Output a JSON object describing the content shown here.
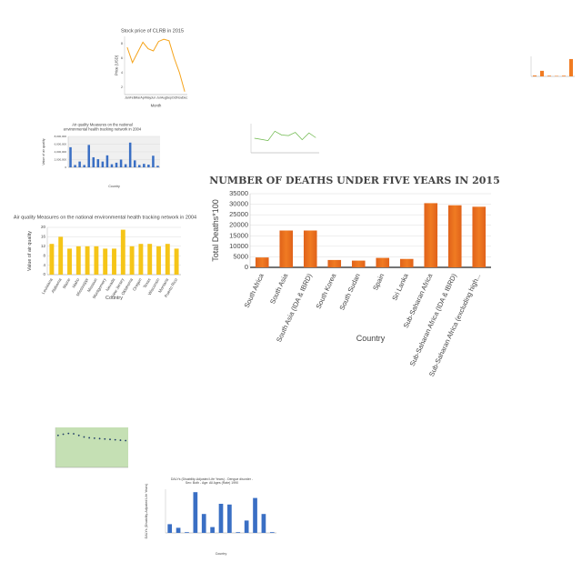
{
  "chart_data": [
    {
      "type": "line",
      "title": "Stock price of CLRB in 2015",
      "xlabel": "Month",
      "ylabel": "Price (USD)",
      "categories": [
        "Jan",
        "Feb",
        "Mar",
        "Apr",
        "May",
        "Jun",
        "Jul",
        "Aug",
        "Sep",
        "Oct",
        "Nov",
        "Dec"
      ],
      "values": [
        7.5,
        5.4,
        6.8,
        8.2,
        7.3,
        7.0,
        8.3,
        8.6,
        8.4,
        6.0,
        4.0,
        1.4
      ],
      "color": "#f5a31a",
      "ylim": [
        1,
        9
      ],
      "yticks": [
        2,
        4,
        6,
        8
      ],
      "grid": false
    },
    {
      "type": "bar",
      "categories": [
        null,
        null,
        null,
        null,
        null,
        null
      ],
      "values": [
        0.4,
        2.5,
        0.3,
        0.2,
        0.3,
        7.8
      ],
      "color": "#f07b22",
      "ylim": [
        0,
        9
      ],
      "grid": false
    },
    {
      "type": "bar",
      "title": "Air quality Measures on the national environmental health tracking network in 2004",
      "xlabel": "Country",
      "ylabel": "Value of air quality",
      "categories": [
        null,
        null,
        null,
        null,
        null,
        null,
        null,
        null,
        null,
        null,
        null,
        null,
        null,
        null,
        null,
        null,
        null,
        null,
        null,
        null
      ],
      "values": [
        5200000,
        600000,
        1500000,
        600000,
        5800000,
        2600000,
        2100000,
        1500000,
        3100000,
        800000,
        1200000,
        2000000,
        800000,
        6400000,
        1800000,
        600000,
        900000,
        700000,
        3000000,
        400000
      ],
      "color": "#3a6fc4",
      "ylim": [
        0,
        8000000
      ],
      "yticks": [
        {
          "value": 0,
          "label": "0"
        },
        {
          "value": 2000000,
          "label": "2,000,000"
        },
        {
          "value": 4000000,
          "label": "4,000,000"
        },
        {
          "value": 6000000,
          "label": "6,000,000"
        },
        {
          "value": 8000000,
          "label": "8,000,000"
        }
      ],
      "grid": true,
      "background": "#f0f0f0"
    },
    {
      "type": "line",
      "categories": [
        null,
        null,
        null,
        null,
        null,
        null,
        null,
        null,
        null,
        null
      ],
      "values": [
        5.0,
        4.6,
        4.2,
        7.4,
        6.1,
        5.9,
        7.0,
        4.5,
        6.8,
        5.2
      ],
      "color": "#6cb84a",
      "ylim": [
        0,
        10
      ],
      "grid": false
    },
    {
      "type": "bar",
      "title": "Air quality Measures on the national environmental health tracking network in 2004",
      "xlabel": "Country",
      "ylabel": "Value of air quality",
      "categories": [
        "Louisiana",
        "Alabama",
        "Maine",
        "Idaho",
        "Mississippi",
        "Missouri",
        "Montgomery",
        "Nevada",
        "New Jersey",
        "Oklahoma",
        "Oregon",
        "Texas",
        "Wisconsin",
        "Montana",
        "Puerto Rico"
      ],
      "values": [
        13,
        16,
        11,
        12,
        12,
        12,
        11,
        11,
        19,
        12,
        13,
        13,
        12,
        13,
        11
      ],
      "color": "#f5c518",
      "ylim": [
        0,
        20
      ],
      "yticks": [
        0,
        4,
        8,
        12,
        16,
        20
      ],
      "grid": true
    },
    {
      "type": "bar",
      "title": "NUMBER OF DEATHS UNDER FIVE YEARS IN 2015",
      "xlabel": "Country",
      "ylabel": "Total Deaths*100",
      "categories": [
        "South Africa",
        "South Asia",
        "South Asia (IDA & IBRD)",
        "South Korea",
        "South Sudan",
        "Spain",
        "Sri Lanka",
        "Sub-Saharan Africa",
        "Sub-Saharan Africa (IDA & IBRD)",
        "Sub-Saharan Africa (excluding high..."
      ],
      "values": [
        4700,
        17500,
        17500,
        3500,
        3200,
        4500,
        4000,
        30500,
        29500,
        28800
      ],
      "color": "#f07b22",
      "ylim": [
        0,
        35000
      ],
      "yticks": [
        0,
        5000,
        10000,
        15000,
        20000,
        25000,
        30000,
        35000
      ],
      "grid": true
    },
    {
      "type": "scatter",
      "categories": [
        null,
        null,
        null,
        null,
        null,
        null,
        null,
        null,
        null,
        null,
        null,
        null,
        null,
        null
      ],
      "values": [
        8.0,
        8.3,
        8.5,
        8.4,
        8.0,
        7.6,
        7.4,
        7.3,
        7.2,
        7.1,
        7.0,
        6.9,
        6.8,
        6.7
      ],
      "color": "#1f3b66",
      "ylim": [
        0,
        10
      ],
      "grid": false,
      "background": "#c5e0b4"
    },
    {
      "type": "bar",
      "title": "DALYs (Disability-Adjusted Life Years) - Dengue disorder - Sex: Both - Age: All Ages (Rate) 1990",
      "xlabel": "Country",
      "ylabel": "DALYs (Disability-Adjusted Life Years)",
      "categories": [
        null,
        null,
        null,
        null,
        null,
        null,
        null,
        null,
        null,
        null,
        null,
        null,
        null
      ],
      "values": [
        60,
        35,
        5,
        280,
        130,
        40,
        200,
        195,
        5,
        85,
        240,
        130,
        5
      ],
      "color": "#3a6fc4",
      "ylim": [
        0,
        300
      ],
      "grid": true
    }
  ]
}
